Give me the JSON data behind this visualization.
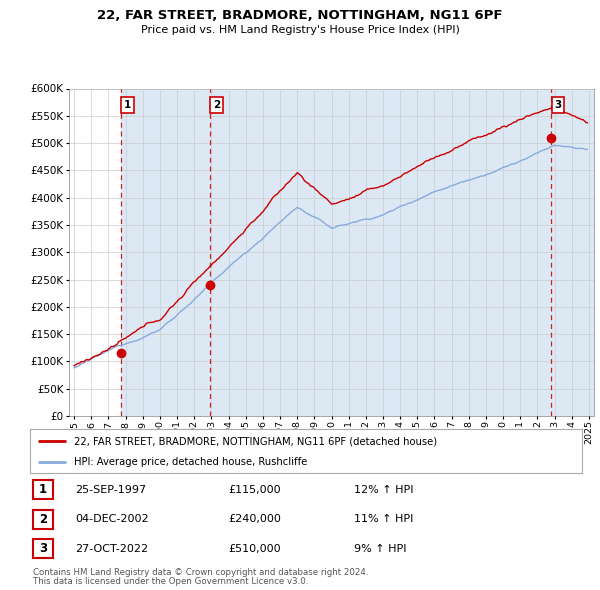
{
  "title": "22, FAR STREET, BRADMORE, NOTTINGHAM, NG11 6PF",
  "subtitle": "Price paid vs. HM Land Registry's House Price Index (HPI)",
  "x_start_year": 1995,
  "x_end_year": 2025,
  "y_min": 0,
  "y_max": 600000,
  "y_tick_step": 50000,
  "sales": [
    {
      "date_num": 1997.73,
      "price": 115000,
      "label": "1",
      "pct": "12%",
      "date_str": "25-SEP-1997"
    },
    {
      "date_num": 2002.92,
      "price": 240000,
      "label": "2",
      "pct": "11%",
      "date_str": "04-DEC-2002"
    },
    {
      "date_num": 2022.82,
      "price": 510000,
      "label": "3",
      "pct": "9%",
      "date_str": "27-OCT-2022"
    }
  ],
  "sale_color": "#cc0000",
  "hpi_color": "#88aadd",
  "hpi_fill_color": "#dde8f5",
  "vline_color": "#cc0000",
  "grid_color": "#cccccc",
  "background_color": "#ffffff",
  "legend_label_sale": "22, FAR STREET, BRADMORE, NOTTINGHAM, NG11 6PF (detached house)",
  "legend_label_hpi": "HPI: Average price, detached house, Rushcliffe",
  "footer1": "Contains HM Land Registry data © Crown copyright and database right 2024.",
  "footer2": "This data is licensed under the Open Government Licence v3.0."
}
